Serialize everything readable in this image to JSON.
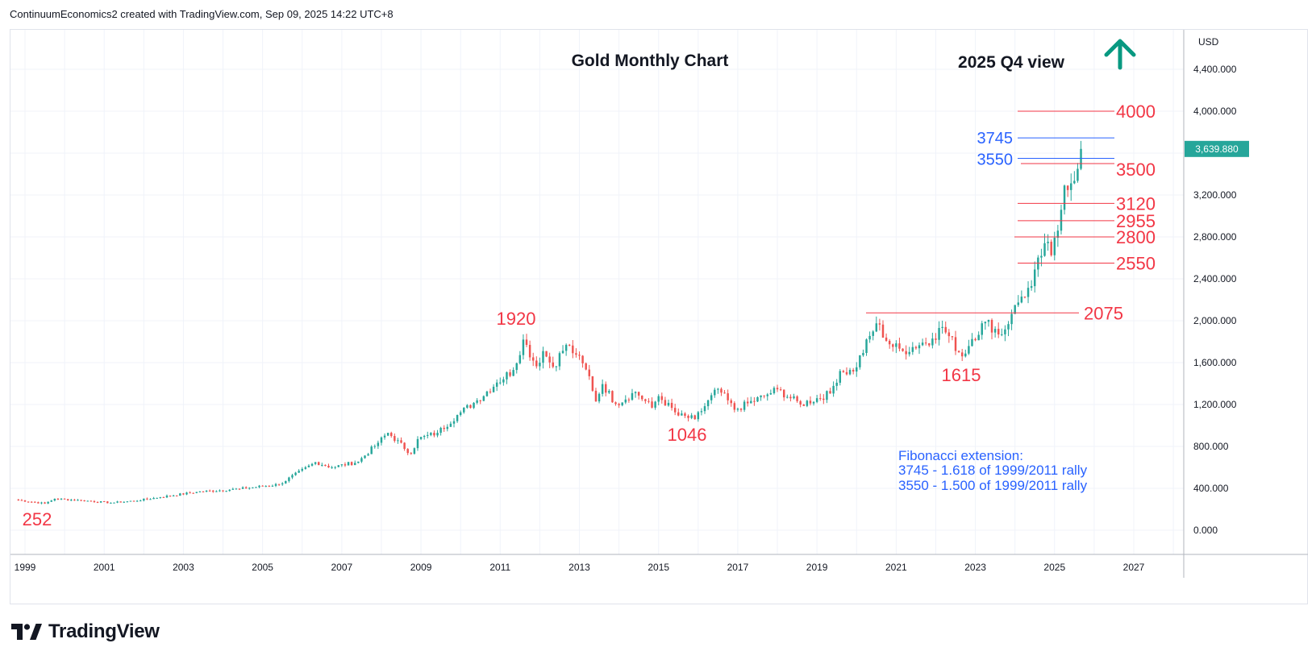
{
  "header": {
    "credit": "ContinuumEconomics2 created with TradingView.com, Sep 09, 2025 14:22 UTC+8"
  },
  "footer": {
    "brand": "TradingView"
  },
  "colors": {
    "up": "#26a69a",
    "down": "#ef5350",
    "level_red": "#f23645",
    "level_blue": "#2962ff",
    "grid": "#f0f3fa",
    "text": "#131722",
    "arrow": "#089981"
  },
  "chart_data": {
    "type": "candlestick",
    "title": "Gold Monthly Chart",
    "subtitle": "2025 Q4 view",
    "currency": "USD",
    "last_price": "3,639.880",
    "ylim": [
      -100,
      4700
    ],
    "y_ticks": [
      0,
      400,
      800,
      1200,
      1600,
      2000,
      2400,
      2800,
      3200,
      3600,
      4000,
      4400
    ],
    "y_tick_labels": [
      "0.000",
      "400.000",
      "800.000",
      "1,200.000",
      "1,600.000",
      "2,000.000",
      "2,400.000",
      "2,800.000",
      "3,200.000",
      "",
      "4,000.000",
      "4,400.000"
    ],
    "xlim": [
      1998.7,
      2028.2
    ],
    "x_ticks": [
      "1999",
      "2001",
      "2003",
      "2005",
      "2007",
      "2009",
      "2011",
      "2013",
      "2015",
      "2017",
      "2019",
      "2021",
      "2023",
      "2025",
      "2027"
    ],
    "anchor_prices": [
      [
        "1998-10",
        292
      ],
      [
        "1999-07",
        255
      ],
      [
        "1999-10",
        300
      ],
      [
        "2000-06",
        285
      ],
      [
        "2001-03",
        262
      ],
      [
        "2001-10",
        280
      ],
      [
        "2002-06",
        316
      ],
      [
        "2003-05",
        365
      ],
      [
        "2004-06",
        395
      ],
      [
        "2005-06",
        438
      ],
      [
        "2006-05",
        650
      ],
      [
        "2006-10",
        600
      ],
      [
        "2007-06",
        655
      ],
      [
        "2007-12",
        835
      ],
      [
        "2008-03",
        930
      ],
      [
        "2008-10",
        730
      ],
      [
        "2008-12",
        870
      ],
      [
        "2009-06",
        930
      ],
      [
        "2009-12",
        1100
      ],
      [
        "2010-06",
        1240
      ],
      [
        "2010-12",
        1410
      ],
      [
        "2011-05",
        1530
      ],
      [
        "2011-08",
        1820
      ],
      [
        "2011-12",
        1565
      ],
      [
        "2012-02",
        1710
      ],
      [
        "2012-05",
        1560
      ],
      [
        "2012-09",
        1770
      ],
      [
        "2012-12",
        1675
      ],
      [
        "2013-04",
        1470
      ],
      [
        "2013-06",
        1230
      ],
      [
        "2013-08",
        1395
      ],
      [
        "2013-12",
        1205
      ],
      [
        "2014-06",
        1320
      ],
      [
        "2014-11",
        1170
      ],
      [
        "2015-01",
        1280
      ],
      [
        "2015-07",
        1095
      ],
      [
        "2015-12",
        1060
      ],
      [
        "2016-07",
        1350
      ],
      [
        "2016-12",
        1150
      ],
      [
        "2017-09",
        1280
      ],
      [
        "2018-01",
        1345
      ],
      [
        "2018-08",
        1200
      ],
      [
        "2019-05",
        1305
      ],
      [
        "2019-08",
        1520
      ],
      [
        "2019-12",
        1515
      ],
      [
        "2020-07",
        1975
      ],
      [
        "2020-11",
        1775
      ],
      [
        "2021-03",
        1710
      ],
      [
        "2021-12",
        1830
      ],
      [
        "2022-03",
        1940
      ],
      [
        "2022-09",
        1660
      ],
      [
        "2022-12",
        1825
      ],
      [
        "2023-04",
        1990
      ],
      [
        "2023-09",
        1870
      ],
      [
        "2023-12",
        2065
      ],
      [
        "2024-03",
        2230
      ],
      [
        "2024-06",
        2330
      ],
      [
        "2024-10",
        2740
      ],
      [
        "2024-12",
        2625
      ],
      [
        "2025-02",
        2860
      ],
      [
        "2025-04",
        3290
      ],
      [
        "2025-08",
        3450
      ],
      [
        "2025-09",
        3640
      ]
    ],
    "horizontal_levels": [
      {
        "label": "4000",
        "value": 4000,
        "color": "red"
      },
      {
        "label": "3745",
        "value": 3745,
        "color": "blue"
      },
      {
        "label": "3550",
        "value": 3550,
        "color": "blue"
      },
      {
        "label": "3500",
        "value": 3500,
        "color": "red"
      },
      {
        "label": "3120",
        "value": 3120,
        "color": "red"
      },
      {
        "label": "2955",
        "value": 2955,
        "color": "red"
      },
      {
        "label": "2800",
        "value": 2800,
        "color": "red"
      },
      {
        "label": "2550",
        "value": 2550,
        "color": "red"
      },
      {
        "label": "2075",
        "value": 2075,
        "color": "red"
      }
    ],
    "point_labels": [
      {
        "label": "1920",
        "date": 2011.6,
        "value": 1920
      },
      {
        "label": "1615",
        "date": 2022.8,
        "value": 1615
      },
      {
        "label": "1046",
        "date": 2015.9,
        "value": 1046
      },
      {
        "label": "252",
        "date": 1999.6,
        "value": 252
      }
    ],
    "annotation": {
      "title": "Fibonacci extension:",
      "lines": [
        "3745 - 1.618 of 1999/2011 rally",
        "3550 - 1.500 of 1999/2011 rally"
      ]
    },
    "outlook_arrow": "up"
  }
}
